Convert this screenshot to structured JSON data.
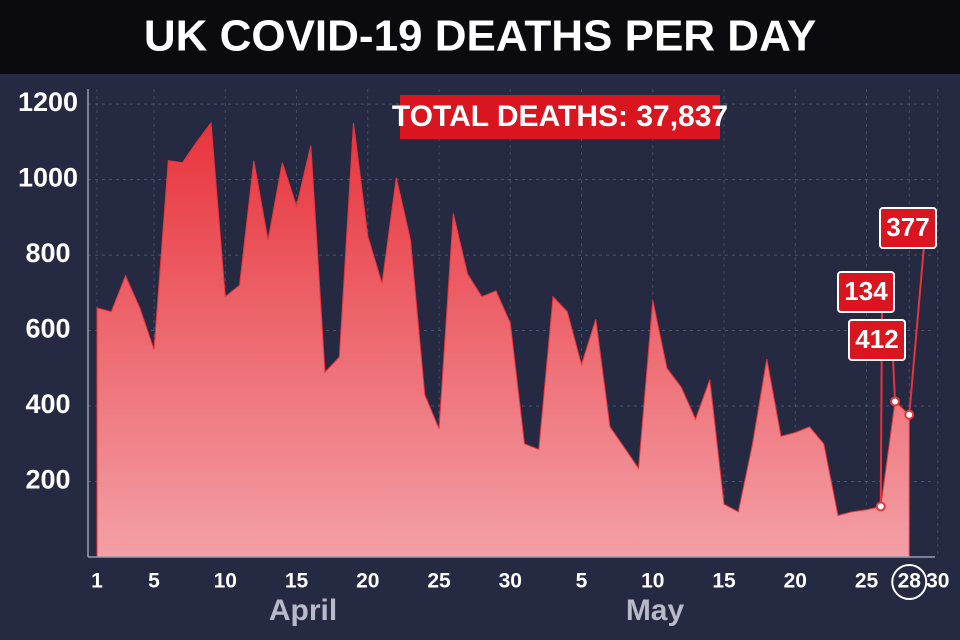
{
  "chart_data": {
    "type": "area",
    "title": "UK COVID-19 DEATHS PER DAY",
    "annotation": "TOTAL DEATHS: 37,837",
    "color": "#e8343c",
    "ylim": [
      0,
      1240
    ],
    "yticks": [
      200,
      400,
      600,
      800,
      1000,
      1200
    ],
    "grid": true,
    "groups": [
      {
        "label": "April",
        "days": [
          1,
          2,
          3,
          4,
          5,
          6,
          7,
          8,
          9,
          10,
          11,
          12,
          13,
          14,
          15,
          16,
          17,
          18,
          19,
          20,
          21,
          22,
          23,
          24,
          25,
          26,
          27,
          28,
          29,
          30
        ],
        "values": [
          660,
          650,
          745,
          660,
          550,
          1050,
          1045,
          1100,
          1150,
          690,
          720,
          1050,
          840,
          1045,
          930,
          1090,
          490,
          530,
          1150,
          850,
          725,
          1005,
          840,
          430,
          340,
          910,
          750,
          690,
          705,
          620
        ],
        "xticks": [
          1,
          5,
          10,
          15,
          20,
          25,
          30
        ]
      },
      {
        "label": "May",
        "days": [
          1,
          2,
          3,
          4,
          5,
          6,
          7,
          8,
          9,
          10,
          11,
          12,
          13,
          14,
          15,
          16,
          17,
          18,
          19,
          20,
          21,
          22,
          23,
          24,
          25,
          26,
          27,
          28
        ],
        "values": [
          300,
          285,
          690,
          650,
          510,
          630,
          345,
          290,
          235,
          680,
          500,
          450,
          365,
          470,
          140,
          120,
          300,
          525,
          320,
          330,
          345,
          300,
          110,
          120,
          125,
          134,
          412,
          377
        ],
        "xticks": [
          5,
          10,
          15,
          20,
          25,
          28,
          30
        ]
      }
    ]
  }
}
